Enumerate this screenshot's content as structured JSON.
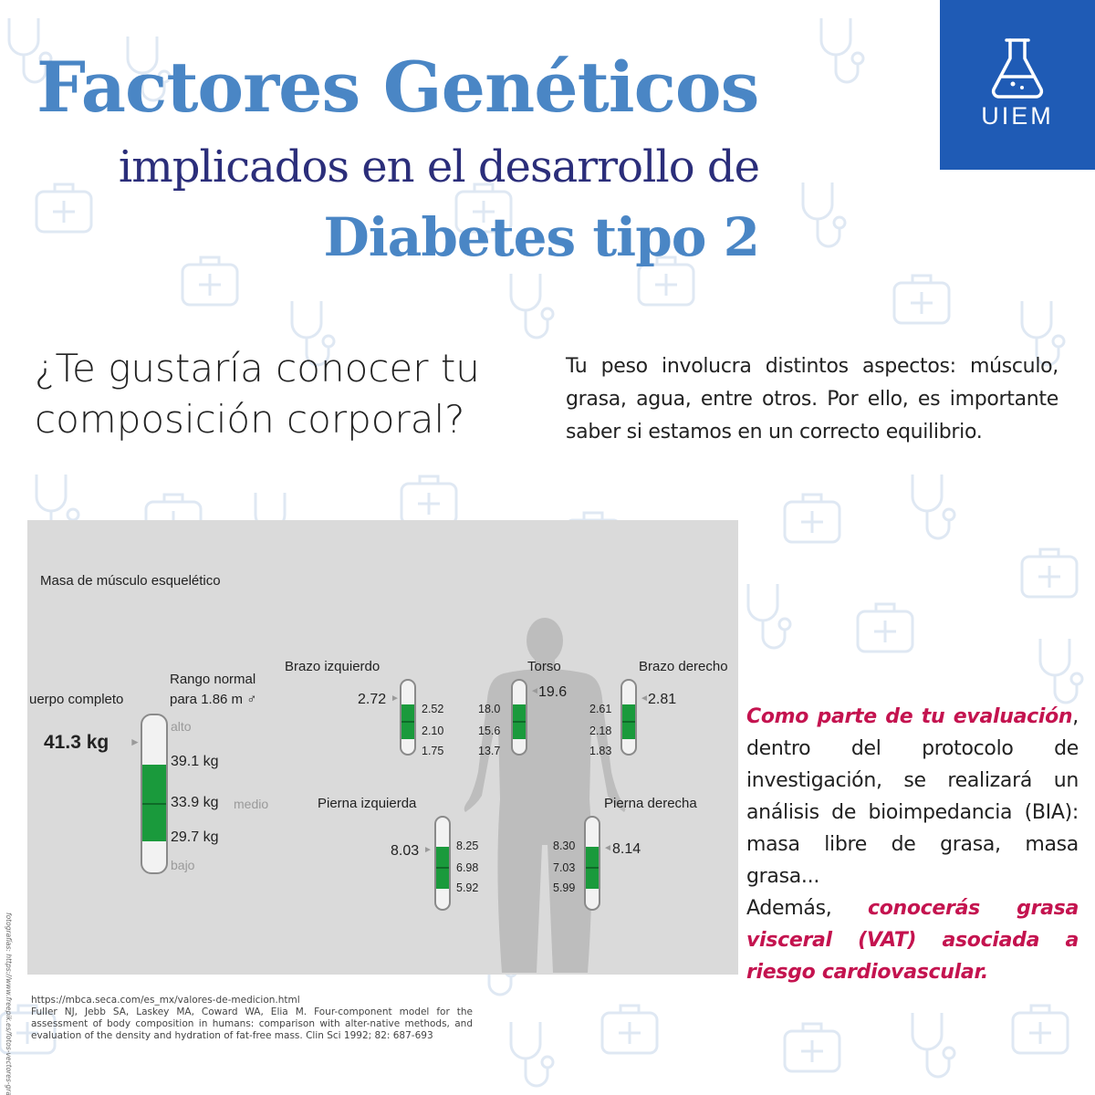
{
  "header": {
    "title_line1": "Factores Genéticos",
    "title_line2": "implicados en el desarrollo de",
    "title_line3": "Diabetes tipo 2",
    "logo_text": "UIEM",
    "logo_icon": "flask-icon"
  },
  "question": "¿Te gustaría conocer tu composición corporal?",
  "intro": "Tu peso involucra distintos aspectos: músculo, grasa, agua, entre otros. Por ello, es importante saber si estamos en un correcto equilibrio.",
  "chart": {
    "title": "Masa de músculo esquelético",
    "whole_body": {
      "label": "uerpo completo",
      "value": "41.3 kg",
      "range_label_1": "Rango normal",
      "range_label_2": "para 1.86 m ♂",
      "alto": "alto",
      "high": "39.1 kg",
      "mid": "33.9 kg",
      "medio": "medio",
      "low": "29.7 kg",
      "bajo": "bajo"
    },
    "left_arm": {
      "label": "Brazo izquierdo",
      "value": "2.72",
      "high": "2.52",
      "mid": "2.10",
      "low": "1.75"
    },
    "torso": {
      "label": "Torso",
      "value": "19.6",
      "high": "18.0",
      "mid": "15.6",
      "low": "13.7"
    },
    "right_arm": {
      "label": "Brazo derecho",
      "value": "2.81",
      "high": "2.61",
      "mid": "2.18",
      "low": "1.83"
    },
    "left_leg": {
      "label": "Pierna izquierda",
      "value": "8.03",
      "high": "8.25",
      "mid": "6.98",
      "low": "5.92"
    },
    "right_leg": {
      "label": "Pierna derecha",
      "value": "8.14",
      "high": "8.30",
      "mid": "7.03",
      "low": "5.99"
    }
  },
  "evaluation": {
    "accent1": "Como parte de tu evaluación",
    "text1": ", dentro del protocolo de investigación, se realizará un análisis de bioimpedancia (BIA): masa libre de grasa, masa grasa...",
    "text2": "Además, ",
    "accent2": "conocerás grasa visceral (VAT) asociada a riesgo cardiovascular."
  },
  "references": {
    "url": "https://mbca.seca.com/es_mx/valores-de-medicion.html",
    "citation": "Fuller NJ, Jebb SA, Laskey MA, Coward WA, Elia M. Four-component model for the assessment of body composition in humans: comparison with alter-native methods, and evaluation of the density and hydration of fat-free mass. Clin Sci 1992; 82: 687-693"
  },
  "photo_credit": "fotografías: https://www.freepik.es/fotos-vectores-gratis",
  "colors": {
    "title_blue": "#4a86c5",
    "title_navy": "#2b2e7a",
    "logo_blue": "#1f5bb5",
    "accent_magenta": "#c4134f",
    "meter_green": "#1a9a3c",
    "panel_grey": "#dadada"
  }
}
